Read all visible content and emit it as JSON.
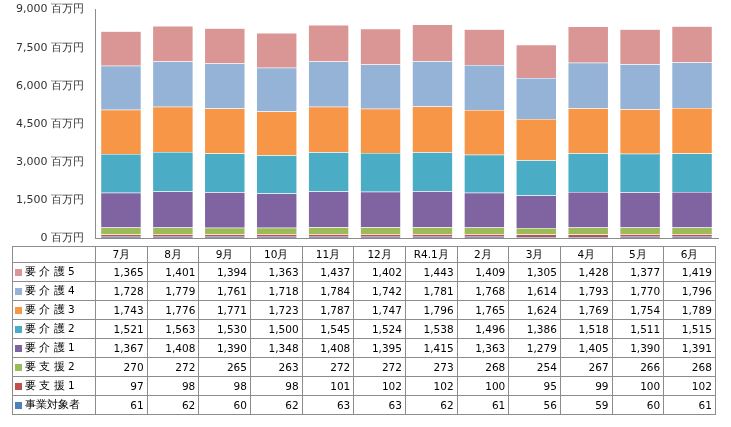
{
  "chart_data": {
    "type": "bar",
    "stacked": true,
    "grid": false,
    "categories": [
      "7月",
      "8月",
      "9月",
      "10月",
      "11月",
      "12月",
      "R4.1月",
      "2月",
      "3月",
      "4月",
      "5月",
      "6月"
    ],
    "ylim": [
      0,
      9000
    ],
    "yticks": [
      {
        "value": 0,
        "label": "0 百万円"
      },
      {
        "value": 1500,
        "label": "1,500 百万円"
      },
      {
        "value": 3000,
        "label": "3,000 百万円"
      },
      {
        "value": 4500,
        "label": "4,500 百万円"
      },
      {
        "value": 6000,
        "label": "6,000 百万円"
      },
      {
        "value": 7500,
        "label": "7,500 百万円"
      },
      {
        "value": 9000,
        "label": "9,000 百万円"
      }
    ],
    "series": [
      {
        "name": "事業対象者",
        "color": "#4f81bd",
        "values": [
          61,
          62,
          60,
          62,
          63,
          63,
          62,
          61,
          56,
          59,
          60,
          61
        ],
        "value_labels": [
          "61",
          "62",
          "60",
          "62",
          "63",
          "63",
          "62",
          "61",
          "56",
          "59",
          "60",
          "61"
        ]
      },
      {
        "name": "要 支 援 1",
        "color": "#c0504d",
        "values": [
          97,
          98,
          98,
          98,
          101,
          102,
          102,
          100,
          95,
          99,
          100,
          102
        ],
        "value_labels": [
          "97",
          "98",
          "98",
          "98",
          "101",
          "102",
          "102",
          "100",
          "95",
          "99",
          "100",
          "102"
        ]
      },
      {
        "name": "要 支 援 2",
        "color": "#9bbb59",
        "values": [
          270,
          272,
          265,
          263,
          272,
          272,
          273,
          268,
          254,
          267,
          266,
          268
        ],
        "value_labels": [
          "270",
          "272",
          "265",
          "263",
          "272",
          "272",
          "273",
          "268",
          "254",
          "267",
          "266",
          "268"
        ]
      },
      {
        "name": "要 介 護 1",
        "color": "#8064a2",
        "values": [
          1367,
          1408,
          1390,
          1348,
          1408,
          1395,
          1415,
          1363,
          1279,
          1405,
          1390,
          1391
        ],
        "value_labels": [
          "1,367",
          "1,408",
          "1,390",
          "1,348",
          "1,408",
          "1,395",
          "1,415",
          "1,363",
          "1,279",
          "1,405",
          "1,390",
          "1,391"
        ]
      },
      {
        "name": "要 介 護 2",
        "color": "#4bacc6",
        "values": [
          1521,
          1563,
          1530,
          1500,
          1545,
          1524,
          1538,
          1496,
          1386,
          1518,
          1511,
          1515
        ],
        "value_labels": [
          "1,521",
          "1,563",
          "1,530",
          "1,500",
          "1,545",
          "1,524",
          "1,538",
          "1,496",
          "1,386",
          "1,518",
          "1,511",
          "1,515"
        ]
      },
      {
        "name": "要 介 護 3",
        "color": "#f79646",
        "values": [
          1743,
          1776,
          1771,
          1723,
          1787,
          1747,
          1796,
          1765,
          1624,
          1769,
          1754,
          1789
        ],
        "value_labels": [
          "1,743",
          "1,776",
          "1,771",
          "1,723",
          "1,787",
          "1,747",
          "1,796",
          "1,765",
          "1,624",
          "1,769",
          "1,754",
          "1,789"
        ]
      },
      {
        "name": "要 介 護 4",
        "color": "#95b3d7",
        "values": [
          1728,
          1779,
          1761,
          1718,
          1784,
          1742,
          1781,
          1768,
          1614,
          1793,
          1770,
          1796
        ],
        "value_labels": [
          "1,728",
          "1,779",
          "1,761",
          "1,718",
          "1,784",
          "1,742",
          "1,781",
          "1,768",
          "1,614",
          "1,793",
          "1,770",
          "1,796"
        ]
      },
      {
        "name": "要 介 護 5",
        "color": "#d99694",
        "values": [
          1365,
          1401,
          1394,
          1363,
          1437,
          1402,
          1443,
          1409,
          1305,
          1428,
          1377,
          1419
        ],
        "value_labels": [
          "1,365",
          "1,401",
          "1,394",
          "1,363",
          "1,437",
          "1,402",
          "1,443",
          "1,409",
          "1,305",
          "1,428",
          "1,377",
          "1,419"
        ]
      }
    ]
  }
}
